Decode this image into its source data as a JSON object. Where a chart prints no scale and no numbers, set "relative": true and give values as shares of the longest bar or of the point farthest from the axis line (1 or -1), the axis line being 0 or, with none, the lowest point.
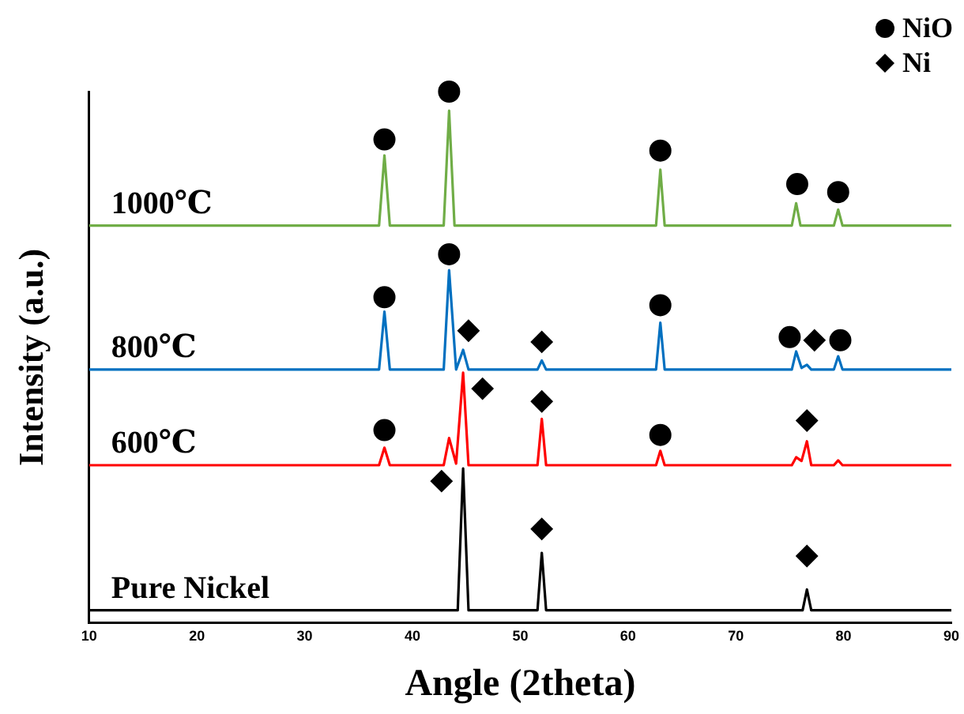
{
  "chart_data": {
    "type": "line",
    "relative": true,
    "xlabel": "Angle (2theta)",
    "ylabel": "Intensity (a.u.)",
    "xlim": [
      10,
      90
    ],
    "xticks": [
      10,
      20,
      30,
      40,
      50,
      60,
      70,
      80,
      90
    ],
    "grid": false,
    "legend": "top right",
    "line_style": "solid",
    "series": [
      {
        "name": "1000℃",
        "color": "#70ad47",
        "x": [
          10,
          36.9,
          37.4,
          37.9,
          42.9,
          43.4,
          43.9,
          62.6,
          63.0,
          63.4,
          75.2,
          75.6,
          76.0,
          79.1,
          79.5,
          79.9,
          90
        ],
        "values": [
          0.748,
          0.748,
          0.88,
          0.748,
          0.748,
          0.964,
          0.748,
          0.748,
          0.853,
          0.748,
          0.748,
          0.79,
          0.748,
          0.748,
          0.778,
          0.748,
          0.748
        ]
      },
      {
        "name": "800℃",
        "color": "#0070c0",
        "x": [
          10,
          36.9,
          37.4,
          37.9,
          42.9,
          43.4,
          44.05,
          44.7,
          45.2,
          51.6,
          52.0,
          52.4,
          62.6,
          63.0,
          63.4,
          75.2,
          75.6,
          76.1,
          76.6,
          77.0,
          79.1,
          79.5,
          79.9,
          90
        ],
        "values": [
          0.477,
          0.477,
          0.586,
          0.477,
          0.477,
          0.664,
          0.477,
          0.514,
          0.477,
          0.477,
          0.494,
          0.477,
          0.477,
          0.565,
          0.477,
          0.477,
          0.511,
          0.48,
          0.486,
          0.477,
          0.477,
          0.502,
          0.477,
          0.477
        ]
      },
      {
        "name": "600℃",
        "color": "#ff0000",
        "x": [
          10,
          36.9,
          37.4,
          37.9,
          42.9,
          43.4,
          44.05,
          44.7,
          45.2,
          51.6,
          52.0,
          52.4,
          62.6,
          63.0,
          63.4,
          75.2,
          75.6,
          76.1,
          76.6,
          77.0,
          79.1,
          79.5,
          79.9,
          90
        ],
        "values": [
          0.297,
          0.297,
          0.33,
          0.297,
          0.297,
          0.348,
          0.3,
          0.471,
          0.297,
          0.297,
          0.384,
          0.297,
          0.297,
          0.324,
          0.297,
          0.297,
          0.312,
          0.305,
          0.342,
          0.297,
          0.297,
          0.306,
          0.297,
          0.297
        ]
      },
      {
        "name": "Pure Nickel",
        "color": "#000000",
        "x": [
          10,
          44.2,
          44.7,
          45.2,
          51.6,
          52.0,
          52.4,
          76.2,
          76.6,
          77.0,
          90
        ],
        "values": [
          0.024,
          0.024,
          0.291,
          0.024,
          0.024,
          0.132,
          0.024,
          0.024,
          0.063,
          0.024,
          0.024
        ]
      },
      {
        "name": "NiO",
        "type": "scatter",
        "marker": "circle",
        "color": "#000000",
        "x": [
          37.4,
          43.4,
          63.0,
          75.7,
          79.5,
          37.4,
          43.4,
          63.0,
          75.0,
          79.7,
          37.4,
          63.0
        ],
        "values": [
          0.91,
          1.0,
          0.889,
          0.826,
          0.811,
          0.613,
          0.694,
          0.598,
          0.538,
          0.532,
          0.363,
          0.354
        ]
      },
      {
        "name": "Ni",
        "type": "scatter",
        "marker": "diamond",
        "color": "#000000",
        "x": [
          45.2,
          52.0,
          77.3,
          46.5,
          52.0,
          76.6,
          42.7,
          52.0,
          76.6
        ],
        "values": [
          0.55,
          0.529,
          0.532,
          0.441,
          0.417,
          0.381,
          0.267,
          0.177,
          0.126
        ]
      }
    ]
  }
}
